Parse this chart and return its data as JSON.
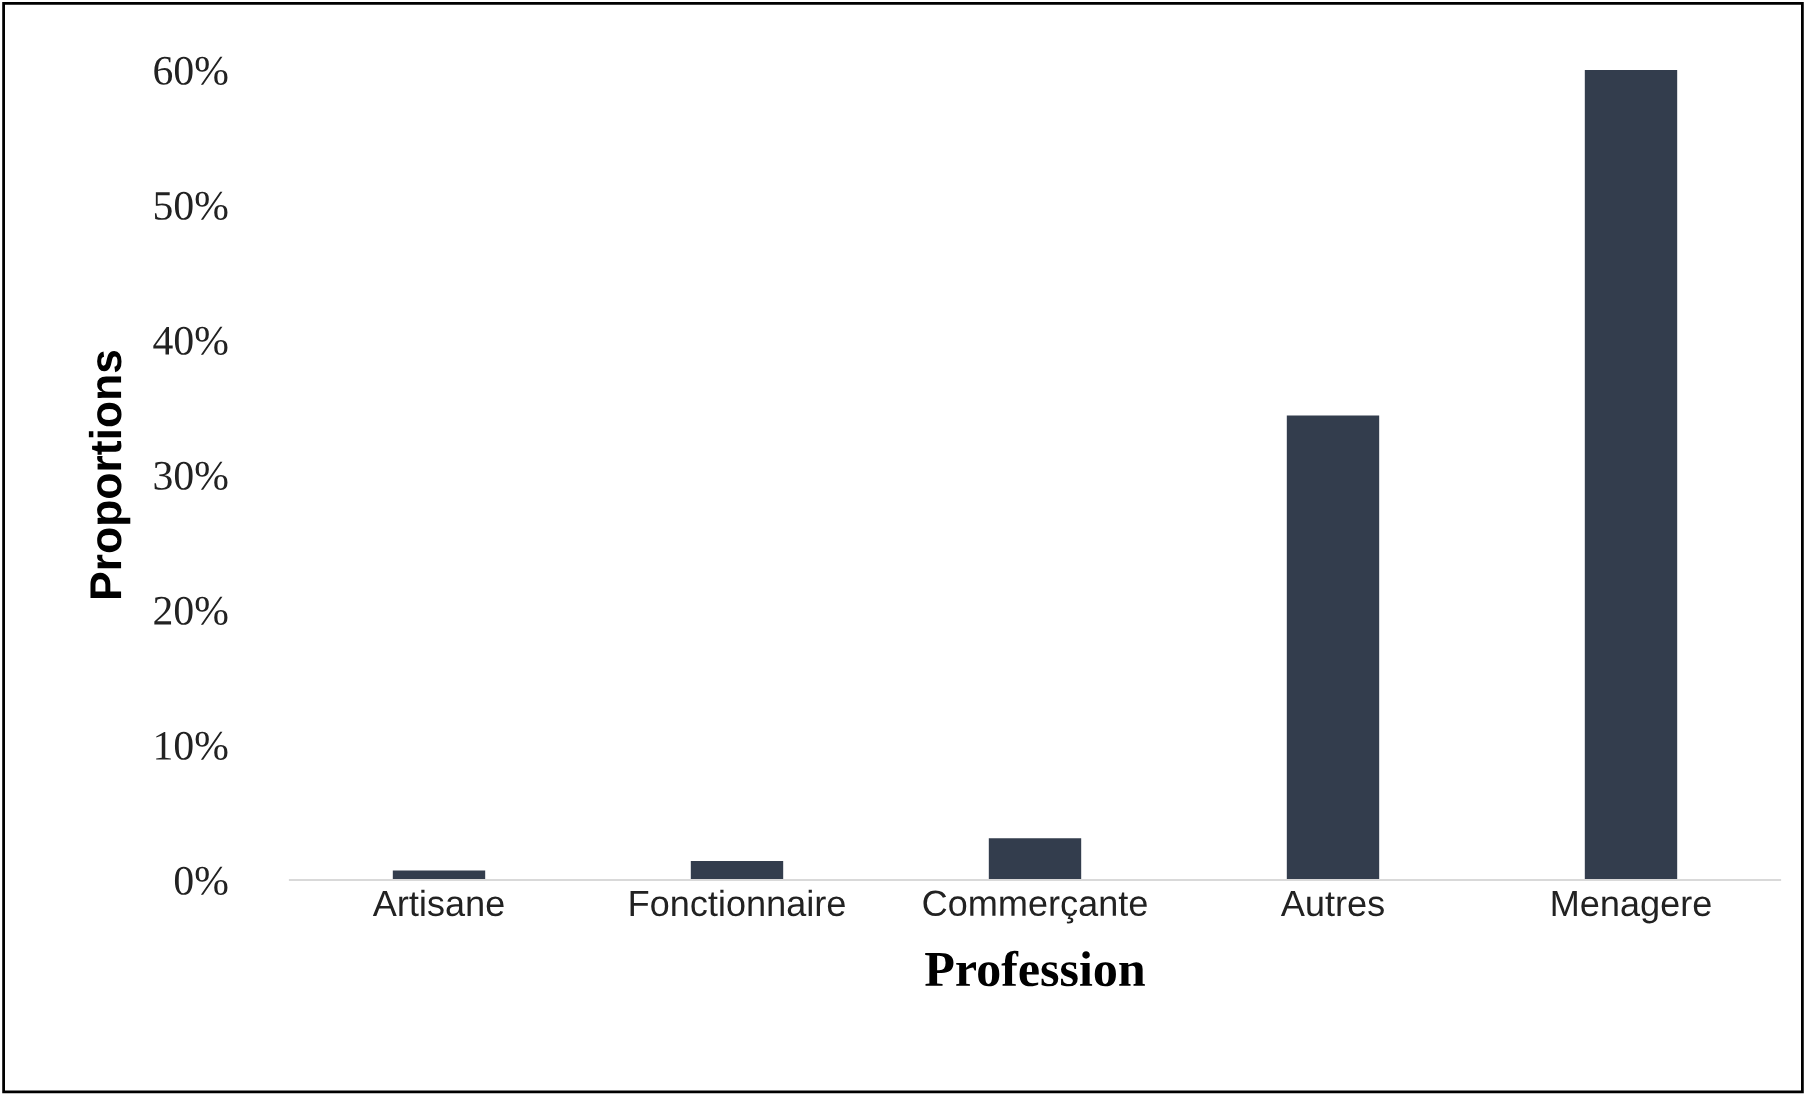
{
  "chart_data": {
    "type": "bar",
    "xlabel": "Profession",
    "ylabel": "Proportions",
    "categories": [
      "Artisane",
      "Fonctionnaire",
      "Commerçante",
      "Autres",
      "Menagere"
    ],
    "values": [
      0.7,
      1.4,
      3.1,
      34.4,
      60
    ],
    "color": "#333d4d",
    "ylim": [
      0,
      60
    ],
    "yticks": [
      {
        "value": 0,
        "label": "0%"
      },
      {
        "value": 10,
        "label": "10%"
      },
      {
        "value": 20,
        "label": "20%"
      },
      {
        "value": 30,
        "label": "30%"
      },
      {
        "value": 40,
        "label": "40%"
      },
      {
        "value": 50,
        "label": "50%"
      },
      {
        "value": 60,
        "label": "60%"
      }
    ],
    "grid": false,
    "legend": false
  }
}
